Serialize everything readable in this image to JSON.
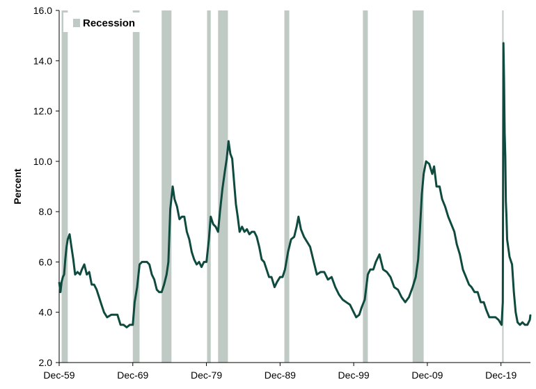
{
  "chart_data": {
    "type": "line",
    "ylabel": "Percent",
    "ylim": [
      2.0,
      16.0
    ],
    "yticks": [
      "2.0",
      "4.0",
      "6.0",
      "8.0",
      "10.0",
      "12.0",
      "14.0",
      "16.0"
    ],
    "xlim": [
      "1959-12",
      "2023-12"
    ],
    "xticks": [
      {
        "label": "Dec-59",
        "date": "1959-12"
      },
      {
        "label": "Dec-69",
        "date": "1969-12"
      },
      {
        "label": "Dec-79",
        "date": "1979-12"
      },
      {
        "label": "Dec-89",
        "date": "1989-12"
      },
      {
        "label": "Dec-99",
        "date": "1999-12"
      },
      {
        "label": "Dec-09",
        "date": "2009-12"
      },
      {
        "label": "Dec-19",
        "date": "2019-12"
      }
    ],
    "legend": {
      "label": "Recession",
      "position": "top-left"
    },
    "grid": false,
    "colors": {
      "line": "#0e4a3e",
      "recession": "#bfcac4"
    },
    "recessions": [
      {
        "start": "1960-04",
        "end": "1961-02"
      },
      {
        "start": "1969-12",
        "end": "1970-11"
      },
      {
        "start": "1973-11",
        "end": "1975-03"
      },
      {
        "start": "1980-01",
        "end": "1980-07"
      },
      {
        "start": "1981-07",
        "end": "1982-11"
      },
      {
        "start": "1990-07",
        "end": "1991-03"
      },
      {
        "start": "2001-03",
        "end": "2001-11"
      },
      {
        "start": "2007-12",
        "end": "2009-06"
      },
      {
        "start": "2020-02",
        "end": "2020-04"
      }
    ],
    "series": [
      {
        "points": [
          [
            "1959-12",
            5.2
          ],
          [
            "1960-02",
            4.8
          ],
          [
            "1960-04",
            5.2
          ],
          [
            "1960-06",
            5.4
          ],
          [
            "1960-08",
            5.5
          ],
          [
            "1960-10",
            6.1
          ],
          [
            "1960-12",
            6.6
          ],
          [
            "1961-02",
            6.9
          ],
          [
            "1961-05",
            7.1
          ],
          [
            "1961-08",
            6.6
          ],
          [
            "1961-11",
            6.1
          ],
          [
            "1962-02",
            5.5
          ],
          [
            "1962-06",
            5.6
          ],
          [
            "1962-10",
            5.5
          ],
          [
            "1963-01",
            5.7
          ],
          [
            "1963-05",
            5.9
          ],
          [
            "1963-09",
            5.5
          ],
          [
            "1964-01",
            5.6
          ],
          [
            "1964-05",
            5.1
          ],
          [
            "1964-09",
            5.1
          ],
          [
            "1965-01",
            4.9
          ],
          [
            "1965-05",
            4.6
          ],
          [
            "1965-09",
            4.3
          ],
          [
            "1966-01",
            4.0
          ],
          [
            "1966-06",
            3.8
          ],
          [
            "1967-01",
            3.9
          ],
          [
            "1967-06",
            3.9
          ],
          [
            "1967-11",
            3.9
          ],
          [
            "1968-04",
            3.5
          ],
          [
            "1968-09",
            3.5
          ],
          [
            "1969-02",
            3.4
          ],
          [
            "1969-07",
            3.5
          ],
          [
            "1969-12",
            3.5
          ],
          [
            "1970-03",
            4.4
          ],
          [
            "1970-07",
            5.0
          ],
          [
            "1970-11",
            5.9
          ],
          [
            "1971-03",
            6.0
          ],
          [
            "1971-07",
            6.0
          ],
          [
            "1971-11",
            6.0
          ],
          [
            "1972-03",
            5.9
          ],
          [
            "1972-07",
            5.5
          ],
          [
            "1972-11",
            5.3
          ],
          [
            "1973-03",
            4.9
          ],
          [
            "1973-07",
            4.8
          ],
          [
            "1973-11",
            4.8
          ],
          [
            "1974-03",
            5.1
          ],
          [
            "1974-07",
            5.5
          ],
          [
            "1974-10",
            6.0
          ],
          [
            "1975-01",
            8.1
          ],
          [
            "1975-05",
            9.0
          ],
          [
            "1975-08",
            8.5
          ],
          [
            "1975-12",
            8.2
          ],
          [
            "1976-04",
            7.7
          ],
          [
            "1976-08",
            7.8
          ],
          [
            "1976-12",
            7.8
          ],
          [
            "1977-04",
            7.2
          ],
          [
            "1977-08",
            6.9
          ],
          [
            "1977-12",
            6.4
          ],
          [
            "1978-04",
            6.1
          ],
          [
            "1978-08",
            5.9
          ],
          [
            "1978-12",
            6.0
          ],
          [
            "1979-04",
            5.8
          ],
          [
            "1979-08",
            6.0
          ],
          [
            "1979-12",
            6.0
          ],
          [
            "1980-04",
            6.9
          ],
          [
            "1980-07",
            7.8
          ],
          [
            "1980-11",
            7.5
          ],
          [
            "1981-03",
            7.4
          ],
          [
            "1981-07",
            7.2
          ],
          [
            "1981-10",
            8.0
          ],
          [
            "1982-02",
            8.9
          ],
          [
            "1982-06",
            9.6
          ],
          [
            "1982-09",
            10.1
          ],
          [
            "1982-12",
            10.8
          ],
          [
            "1983-03",
            10.3
          ],
          [
            "1983-06",
            10.1
          ],
          [
            "1983-09",
            9.2
          ],
          [
            "1983-12",
            8.3
          ],
          [
            "1984-03",
            7.8
          ],
          [
            "1984-06",
            7.2
          ],
          [
            "1984-10",
            7.4
          ],
          [
            "1985-02",
            7.2
          ],
          [
            "1985-06",
            7.3
          ],
          [
            "1985-10",
            7.1
          ],
          [
            "1986-02",
            7.2
          ],
          [
            "1986-06",
            7.2
          ],
          [
            "1986-10",
            7.0
          ],
          [
            "1987-02",
            6.6
          ],
          [
            "1987-06",
            6.1
          ],
          [
            "1987-10",
            6.0
          ],
          [
            "1988-02",
            5.7
          ],
          [
            "1988-06",
            5.4
          ],
          [
            "1988-10",
            5.4
          ],
          [
            "1989-03",
            5.0
          ],
          [
            "1989-07",
            5.2
          ],
          [
            "1989-12",
            5.4
          ],
          [
            "1990-04",
            5.4
          ],
          [
            "1990-08",
            5.7
          ],
          [
            "1991-01",
            6.4
          ],
          [
            "1991-06",
            6.9
          ],
          [
            "1991-11",
            7.0
          ],
          [
            "1992-03",
            7.4
          ],
          [
            "1992-06",
            7.8
          ],
          [
            "1992-10",
            7.3
          ],
          [
            "1993-03",
            7.0
          ],
          [
            "1993-08",
            6.8
          ],
          [
            "1994-01",
            6.6
          ],
          [
            "1994-06",
            6.1
          ],
          [
            "1994-12",
            5.5
          ],
          [
            "1995-06",
            5.6
          ],
          [
            "1995-12",
            5.6
          ],
          [
            "1996-06",
            5.3
          ],
          [
            "1996-12",
            5.4
          ],
          [
            "1997-06",
            5.0
          ],
          [
            "1997-12",
            4.7
          ],
          [
            "1998-06",
            4.5
          ],
          [
            "1998-12",
            4.4
          ],
          [
            "1999-06",
            4.3
          ],
          [
            "1999-12",
            4.0
          ],
          [
            "2000-04",
            3.8
          ],
          [
            "2000-09",
            3.9
          ],
          [
            "2001-01",
            4.2
          ],
          [
            "2001-06",
            4.5
          ],
          [
            "2001-11",
            5.5
          ],
          [
            "2002-03",
            5.7
          ],
          [
            "2002-08",
            5.7
          ],
          [
            "2002-12",
            6.0
          ],
          [
            "2003-06",
            6.3
          ],
          [
            "2003-12",
            5.7
          ],
          [
            "2004-06",
            5.6
          ],
          [
            "2004-12",
            5.4
          ],
          [
            "2005-06",
            5.0
          ],
          [
            "2005-12",
            4.9
          ],
          [
            "2006-06",
            4.6
          ],
          [
            "2006-12",
            4.4
          ],
          [
            "2007-06",
            4.6
          ],
          [
            "2007-12",
            5.0
          ],
          [
            "2008-05",
            5.4
          ],
          [
            "2008-09",
            6.1
          ],
          [
            "2008-12",
            7.3
          ],
          [
            "2009-03",
            8.7
          ],
          [
            "2009-06",
            9.5
          ],
          [
            "2009-10",
            10.0
          ],
          [
            "2010-03",
            9.9
          ],
          [
            "2010-08",
            9.5
          ],
          [
            "2010-11",
            9.8
          ],
          [
            "2011-03",
            9.0
          ],
          [
            "2011-08",
            9.0
          ],
          [
            "2011-12",
            8.5
          ],
          [
            "2012-05",
            8.2
          ],
          [
            "2012-10",
            7.8
          ],
          [
            "2013-03",
            7.5
          ],
          [
            "2013-08",
            7.2
          ],
          [
            "2013-12",
            6.7
          ],
          [
            "2014-05",
            6.3
          ],
          [
            "2014-10",
            5.7
          ],
          [
            "2015-03",
            5.4
          ],
          [
            "2015-08",
            5.1
          ],
          [
            "2015-12",
            5.0
          ],
          [
            "2016-05",
            4.8
          ],
          [
            "2016-10",
            4.8
          ],
          [
            "2017-03",
            4.4
          ],
          [
            "2017-08",
            4.4
          ],
          [
            "2017-12",
            4.1
          ],
          [
            "2018-05",
            3.8
          ],
          [
            "2018-10",
            3.8
          ],
          [
            "2019-03",
            3.8
          ],
          [
            "2019-08",
            3.7
          ],
          [
            "2020-01",
            3.5
          ],
          [
            "2020-03",
            4.4
          ],
          [
            "2020-04",
            14.7
          ],
          [
            "2020-05",
            13.2
          ],
          [
            "2020-06",
            11.1
          ],
          [
            "2020-07",
            10.2
          ],
          [
            "2020-08",
            8.4
          ],
          [
            "2020-09",
            7.8
          ],
          [
            "2020-10",
            6.9
          ],
          [
            "2021-02",
            6.2
          ],
          [
            "2021-06",
            5.9
          ],
          [
            "2021-09",
            4.8
          ],
          [
            "2021-12",
            4.0
          ],
          [
            "2022-03",
            3.6
          ],
          [
            "2022-07",
            3.5
          ],
          [
            "2022-11",
            3.6
          ],
          [
            "2023-03",
            3.5
          ],
          [
            "2023-07",
            3.5
          ],
          [
            "2023-11",
            3.7
          ],
          [
            "2023-12",
            3.9
          ]
        ]
      }
    ]
  }
}
